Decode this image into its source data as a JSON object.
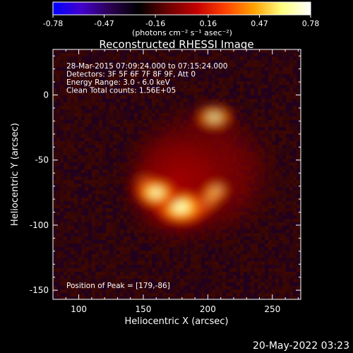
{
  "chart_data": {
    "type": "heatmap",
    "title": "Reconstructed RHESSI Image",
    "xlabel": "Heliocentric X (arcsec)",
    "ylabel": "Heliocentric Y (arcsec)",
    "xlim": [
      80,
      272
    ],
    "ylim": [
      -157,
      35
    ],
    "x_ticks": [
      100,
      150,
      200,
      250
    ],
    "y_ticks": [
      0,
      -50,
      -100,
      -150
    ],
    "colorbar": {
      "min": -0.78,
      "max": 0.78,
      "ticks": [
        "-0.78",
        "-0.47",
        "-0.16",
        "0.16",
        "0.47",
        "0.78"
      ],
      "units": "(photons cm⁻² s⁻¹ asec⁻²)",
      "colormap": [
        "#0000ff",
        "#4400cc",
        "#2a0050",
        "#000000",
        "#6a0000",
        "#c00000",
        "#ff4000",
        "#ffa000",
        "#ffff80",
        "#ffffff"
      ]
    },
    "annotations": [
      "28-Mar-2015 07:09:24.000 to 07:15:24.000",
      "Detectors: 3F 5F 6F 7F 8F 9F, Att 0",
      "Energy Range: 3.0 - 6.0 keV",
      "Clean    Total counts: 1.56E+05"
    ],
    "peak_label": "Position of Peak = [179,-86]",
    "sources": [
      {
        "x": 179,
        "y": -86,
        "peak": 0.78
      },
      {
        "x": 160,
        "y": -75,
        "peak": 0.62
      },
      {
        "x": 205,
        "y": -17,
        "peak": 0.5
      }
    ]
  },
  "footer": {
    "timestamp": "20-May-2022 03:23"
  }
}
